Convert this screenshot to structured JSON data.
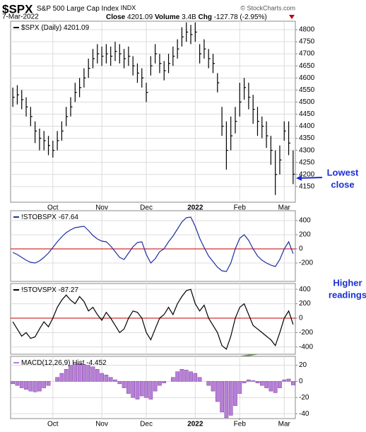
{
  "header": {
    "symbol": "$SPX",
    "name": "S&P 500 Large Cap Index",
    "exchange": "INDX",
    "credit": "© StockCharts.com",
    "date": "7-Mar-2022",
    "close_label": "Close",
    "close": 4201.09,
    "volume_label": "Volume",
    "volume": "3.4B",
    "chg_label": "Chg",
    "chg": -127.78,
    "chg_pct": "(-2.95%)"
  },
  "annotations": [
    {
      "lines": [
        "Lowest",
        "close"
      ]
    },
    {
      "lines": [
        "Higher",
        "readings"
      ]
    }
  ],
  "chart_data": [
    {
      "type": "ohlc",
      "label": "$SPX (Daily)",
      "last": 4201.09,
      "color": "#000000",
      "xlim": [
        -0.5,
        63.5
      ],
      "xticks": [
        {
          "value": 9,
          "label": "Oct"
        },
        {
          "value": 20,
          "label": "Nov"
        },
        {
          "value": 30,
          "label": "Dec"
        },
        {
          "value": 41,
          "label": "2022"
        },
        {
          "value": 51,
          "label": "Feb"
        },
        {
          "value": 61,
          "label": "Mar"
        }
      ],
      "ylim": [
        4085,
        4835
      ],
      "yticks": [
        4150,
        4200,
        4250,
        4300,
        4350,
        4400,
        4450,
        4500,
        4550,
        4600,
        4650,
        4700,
        4750,
        4800
      ],
      "grid": true,
      "high": [
        4560,
        4570,
        4550,
        4520,
        4480,
        4420,
        4390,
        4380,
        4360,
        4340,
        4380,
        4420,
        4480,
        4520,
        4580,
        4600,
        4640,
        4680,
        4720,
        4740,
        4730,
        4740,
        4730,
        4750,
        4740,
        4720,
        4730,
        4690,
        4660,
        4640,
        4580,
        4690,
        4740,
        4700,
        4670,
        4700,
        4730,
        4760,
        4810,
        4830,
        4820,
        4830,
        4740,
        4760,
        4720,
        4700,
        4620,
        4480,
        4420,
        4440,
        4480,
        4580,
        4600,
        4580,
        4530,
        4480,
        4440,
        4420,
        4360,
        4300,
        4320,
        4420,
        4420,
        4300
      ],
      "low": [
        4480,
        4490,
        4470,
        4440,
        4400,
        4330,
        4300,
        4300,
        4280,
        4270,
        4300,
        4340,
        4400,
        4440,
        4500,
        4520,
        4560,
        4600,
        4640,
        4660,
        4650,
        4660,
        4650,
        4670,
        4660,
        4640,
        4650,
        4610,
        4580,
        4560,
        4500,
        4610,
        4660,
        4620,
        4590,
        4620,
        4650,
        4680,
        4730,
        4750,
        4740,
        4750,
        4660,
        4680,
        4640,
        4620,
        4540,
        4360,
        4220,
        4300,
        4370,
        4440,
        4510,
        4470,
        4410,
        4360,
        4350,
        4310,
        4240,
        4115,
        4200,
        4340,
        4280,
        4160
      ],
      "close": [
        4520,
        4530,
        4510,
        4480,
        4440,
        4380,
        4350,
        4340,
        4320,
        4300,
        4340,
        4380,
        4440,
        4480,
        4540,
        4560,
        4600,
        4640,
        4680,
        4700,
        4690,
        4700,
        4690,
        4710,
        4700,
        4680,
        4690,
        4650,
        4620,
        4600,
        4540,
        4650,
        4700,
        4660,
        4630,
        4660,
        4690,
        4720,
        4770,
        4790,
        4780,
        4790,
        4700,
        4720,
        4680,
        4660,
        4580,
        4400,
        4300,
        4360,
        4420,
        4500,
        4560,
        4520,
        4470,
        4420,
        4400,
        4360,
        4300,
        4200,
        4260,
        4380,
        4330,
        4201.09
      ]
    },
    {
      "type": "line",
      "label": "!STOBSPX",
      "last": -67.64,
      "color": "#1f2f9f",
      "zero_line_color": "#c00000",
      "ylim": [
        -460,
        540
      ],
      "yticks": [
        400,
        200,
        0,
        -200
      ],
      "grid": true,
      "values": [
        -50,
        -80,
        -120,
        -160,
        -190,
        -200,
        -170,
        -120,
        -60,
        20,
        100,
        170,
        230,
        270,
        300,
        310,
        320,
        260,
        190,
        140,
        110,
        100,
        40,
        -40,
        -120,
        -150,
        -60,
        30,
        90,
        100,
        -80,
        -200,
        -140,
        -40,
        0,
        100,
        180,
        280,
        380,
        440,
        450,
        320,
        150,
        20,
        -100,
        -180,
        -260,
        -310,
        -320,
        -200,
        0,
        150,
        200,
        120,
        0,
        -100,
        -160,
        -200,
        -230,
        -250,
        -150,
        0,
        100,
        -67.64
      ]
    },
    {
      "type": "line",
      "label": "!STOVSPX",
      "last": -87.27,
      "color": "#000000",
      "zero_line_color": "#c00000",
      "ylim": [
        -500,
        480
      ],
      "yticks": [
        400,
        200,
        0,
        -200,
        -400
      ],
      "grid": true,
      "values": [
        -50,
        -150,
        -250,
        -200,
        -280,
        -260,
        -150,
        -50,
        -120,
        0,
        150,
        250,
        320,
        250,
        200,
        300,
        230,
        100,
        150,
        50,
        -30,
        80,
        0,
        -100,
        -200,
        -150,
        0,
        100,
        80,
        0,
        -200,
        -300,
        -150,
        0,
        50,
        150,
        50,
        200,
        300,
        380,
        400,
        200,
        100,
        180,
        0,
        -100,
        -200,
        -380,
        -430,
        -250,
        0,
        150,
        200,
        50,
        -100,
        -150,
        -200,
        -250,
        -300,
        -380,
        -200,
        0,
        100,
        -87.27
      ]
    },
    {
      "type": "bar",
      "label": "MACD(12,26,9) Hist",
      "last": -4.452,
      "color": "#b77fd6",
      "xticks": [
        {
          "value": 9,
          "label": "Oct"
        },
        {
          "value": 20,
          "label": "Nov"
        },
        {
          "value": 30,
          "label": "Dec"
        },
        {
          "value": 41,
          "label": "2022"
        },
        {
          "value": 51,
          "label": "Feb"
        },
        {
          "value": 61,
          "label": "Mar"
        }
      ],
      "ylim": [
        -46,
        31
      ],
      "yticks": [
        20,
        0,
        -20,
        -40
      ],
      "grid": true,
      "values": [
        -3,
        -5,
        -8,
        -10,
        -12,
        -13,
        -12,
        -8,
        -5,
        0,
        5,
        10,
        15,
        20,
        22,
        22,
        21,
        20,
        18,
        15,
        10,
        8,
        5,
        2,
        -3,
        -8,
        -15,
        -20,
        -22,
        -18,
        -20,
        -22,
        -12,
        -5,
        -2,
        0,
        5,
        12,
        15,
        14,
        12,
        10,
        5,
        0,
        -5,
        -12,
        -25,
        -38,
        -45,
        -42,
        -30,
        -15,
        -2,
        2,
        1,
        -2,
        -5,
        -8,
        -12,
        -14,
        -8,
        2,
        3,
        -4.452
      ]
    }
  ]
}
